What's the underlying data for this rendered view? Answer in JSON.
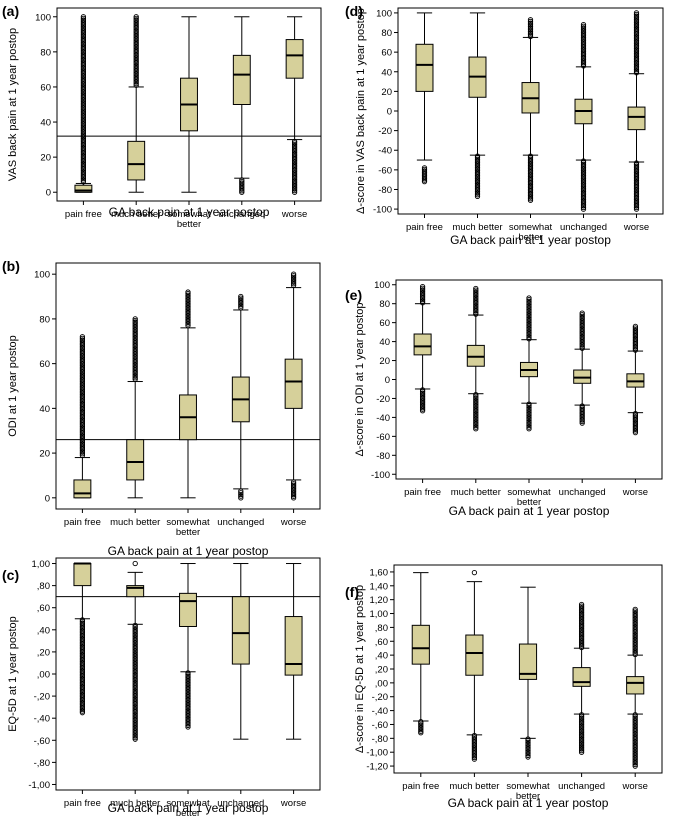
{
  "figure": {
    "x_title": "GA back pain at 1 year postop",
    "categories": [
      "pain free",
      "much better",
      "somewhat\nbetter",
      "unchanged",
      "worse"
    ]
  },
  "colors": {
    "box_fill": "#d6d09a",
    "stroke": "#000000",
    "frame": "#000000"
  },
  "chart_data": [
    {
      "type": "box",
      "panel": "(a)",
      "ylabel": "VAS back pain at 1 year postop",
      "xlabel": "GA back pain at 1 year postop",
      "ylim": [
        -5,
        105
      ],
      "yticks": [
        0,
        20,
        40,
        60,
        80,
        100
      ],
      "reference_line": 32,
      "categories": [
        "pain free",
        "much better",
        "somewhat better",
        "unchanged",
        "worse"
      ],
      "boxes": [
        {
          "lo": 0,
          "q1": 0,
          "med": 1,
          "q3": 4,
          "hi": 5,
          "out_hi": [
            6,
            100
          ],
          "out_lo": null
        },
        {
          "lo": 0,
          "q1": 7,
          "med": 16,
          "q3": 29,
          "hi": 60,
          "out_hi": [
            61,
            100
          ],
          "out_lo": null
        },
        {
          "lo": 0,
          "q1": 35,
          "med": 50,
          "q3": 65,
          "hi": 100,
          "out_hi": null,
          "out_lo": null
        },
        {
          "lo": 8,
          "q1": 50,
          "med": 67,
          "q3": 78,
          "hi": 100,
          "out_hi": null,
          "out_lo": [
            0,
            7
          ]
        },
        {
          "lo": 30,
          "q1": 65,
          "med": 78,
          "q3": 87,
          "hi": 100,
          "out_hi": null,
          "out_lo": [
            0,
            29
          ]
        }
      ]
    },
    {
      "type": "box",
      "panel": "(d)",
      "ylabel": "Δ-score in VAS back pain at 1 year postop",
      "xlabel": "GA back pain at 1 year postop",
      "ylim": [
        -105,
        105
      ],
      "yticks": [
        100,
        80,
        60,
        40,
        20,
        0,
        -20,
        -40,
        -60,
        -80,
        -100
      ],
      "reference_line": null,
      "categories": [
        "pain free",
        "much better",
        "somewhat better",
        "unchanged",
        "worse"
      ],
      "boxes": [
        {
          "lo": -50,
          "q1": 20,
          "med": 47,
          "q3": 68,
          "hi": 100,
          "out_hi": null,
          "out_lo": [
            -72,
            -58
          ]
        },
        {
          "lo": -45,
          "q1": 14,
          "med": 35,
          "q3": 55,
          "hi": 100,
          "out_hi": null,
          "out_lo": [
            -87,
            -46
          ]
        },
        {
          "lo": -45,
          "q1": -2,
          "med": 13,
          "q3": 29,
          "hi": 75,
          "out_hi": [
            76,
            93
          ],
          "out_lo": [
            -91,
            -46
          ]
        },
        {
          "lo": -50,
          "q1": -13,
          "med": 0,
          "q3": 12,
          "hi": 45,
          "out_hi": [
            46,
            88
          ],
          "out_lo": [
            -100,
            -51
          ]
        },
        {
          "lo": -52,
          "q1": -19,
          "med": -6,
          "q3": 4,
          "hi": 38,
          "out_hi": [
            39,
            100
          ],
          "out_lo": [
            -100,
            -53
          ]
        }
      ]
    },
    {
      "type": "box",
      "panel": "(b)",
      "ylabel": "ODI at 1 year postop",
      "xlabel": "GA back pain at 1 year postop",
      "ylim": [
        -5,
        105
      ],
      "yticks": [
        0,
        20,
        40,
        60,
        80,
        100
      ],
      "reference_line": 26,
      "categories": [
        "pain free",
        "much better",
        "somewhat better",
        "unchanged",
        "worse"
      ],
      "boxes": [
        {
          "lo": 0,
          "q1": 0,
          "med": 2,
          "q3": 8,
          "hi": 18,
          "out_hi": [
            19,
            72
          ],
          "out_lo": null
        },
        {
          "lo": 0,
          "q1": 8,
          "med": 16,
          "q3": 26,
          "hi": 52,
          "out_hi": [
            53,
            80
          ],
          "out_lo": null
        },
        {
          "lo": 0,
          "q1": 26,
          "med": 36,
          "q3": 46,
          "hi": 76,
          "out_hi": [
            77,
            92
          ],
          "out_lo": null
        },
        {
          "lo": 4,
          "q1": 34,
          "med": 44,
          "q3": 54,
          "hi": 84,
          "out_hi": [
            85,
            90
          ],
          "out_lo": [
            0,
            3
          ]
        },
        {
          "lo": 8,
          "q1": 40,
          "med": 52,
          "q3": 62,
          "hi": 94,
          "out_hi": [
            95,
            100
          ],
          "out_lo": [
            0,
            7
          ]
        }
      ]
    },
    {
      "type": "box",
      "panel": "(e)",
      "ylabel": "Δ-score in ODI at 1 year postop",
      "xlabel": "GA back pain at 1 year postop",
      "ylim": [
        -105,
        105
      ],
      "yticks": [
        100,
        80,
        60,
        40,
        20,
        0,
        -20,
        -40,
        -60,
        -80,
        -100
      ],
      "reference_line": null,
      "categories": [
        "pain free",
        "much better",
        "somewhat better",
        "unchanged",
        "worse"
      ],
      "boxes": [
        {
          "lo": -10,
          "q1": 26,
          "med": 35,
          "q3": 48,
          "hi": 80,
          "out_hi": [
            81,
            98
          ],
          "out_lo": [
            -33,
            -11
          ]
        },
        {
          "lo": -15,
          "q1": 14,
          "med": 24,
          "q3": 36,
          "hi": 68,
          "out_hi": [
            69,
            96
          ],
          "out_lo": [
            -52,
            -16
          ]
        },
        {
          "lo": -25,
          "q1": 3,
          "med": 10,
          "q3": 18,
          "hi": 42,
          "out_hi": [
            43,
            86
          ],
          "out_lo": [
            -52,
            -26
          ]
        },
        {
          "lo": -27,
          "q1": -4,
          "med": 2,
          "q3": 10,
          "hi": 32,
          "out_hi": [
            33,
            70
          ],
          "out_lo": [
            -46,
            -28
          ]
        },
        {
          "lo": -35,
          "q1": -8,
          "med": -2,
          "q3": 6,
          "hi": 30,
          "out_hi": [
            31,
            56
          ],
          "out_lo": [
            -56,
            -36
          ]
        }
      ]
    },
    {
      "type": "box",
      "panel": "(c)",
      "ylabel": "EQ-5D at 1 year postop",
      "xlabel": "GA back pain at 1 year postop",
      "ylim": [
        -1.05,
        1.05
      ],
      "yticks": [
        "1,00",
        ",80",
        ",60",
        ",40",
        ",20",
        ",00",
        "-,20",
        "-,40",
        "-,60",
        "-,80",
        "-1,00"
      ],
      "reference_line": 0.7,
      "categories": [
        "pain free",
        "much better",
        "somewhat better",
        "unchanged",
        "worse"
      ],
      "boxes": [
        {
          "lo": 0.5,
          "q1": 0.8,
          "med": 1.0,
          "q3": 1.0,
          "hi": 1.0,
          "out_hi": null,
          "out_lo": [
            -0.35,
            0.49
          ]
        },
        {
          "lo": 0.45,
          "q1": 0.7,
          "med": 0.78,
          "q3": 0.8,
          "hi": 0.92,
          "out_hi": [
            1.0,
            1.0
          ],
          "out_lo": [
            -0.59,
            0.44
          ]
        },
        {
          "lo": 0.02,
          "q1": 0.43,
          "med": 0.66,
          "q3": 0.73,
          "hi": 1.0,
          "out_hi": null,
          "out_lo": [
            -0.48,
            0.01
          ]
        },
        {
          "lo": -0.59,
          "q1": 0.09,
          "med": 0.37,
          "q3": 0.7,
          "hi": 1.0,
          "out_hi": null,
          "out_lo": null
        },
        {
          "lo": -0.59,
          "q1": -0.01,
          "med": 0.09,
          "q3": 0.52,
          "hi": 1.0,
          "out_hi": null,
          "out_lo": null
        }
      ]
    },
    {
      "type": "box",
      "panel": "(f)",
      "ylabel": "Δ-score in EQ-5D at 1 year postop",
      "xlabel": "GA back pain at 1 year postop",
      "ylim": [
        -1.3,
        1.7
      ],
      "yticks": [
        "1,60",
        "1,40",
        "1,20",
        "1,00",
        ",80",
        ",60",
        ",40",
        ",20",
        ",00",
        "-,20",
        "-,40",
        "-,60",
        "-,80",
        "-1,00",
        "-1,20"
      ],
      "reference_line": null,
      "categories": [
        "pain free",
        "much better",
        "somewhat better",
        "unchanged",
        "worse"
      ],
      "boxes": [
        {
          "lo": -0.55,
          "q1": 0.27,
          "med": 0.5,
          "q3": 0.83,
          "hi": 1.59,
          "out_hi": null,
          "out_lo": [
            -0.72,
            -0.56
          ]
        },
        {
          "lo": -0.75,
          "q1": 0.11,
          "med": 0.43,
          "q3": 0.69,
          "hi": 1.46,
          "out_hi": [
            1.59,
            1.59
          ],
          "out_lo": [
            -1.1,
            -0.76
          ]
        },
        {
          "lo": -0.8,
          "q1": 0.05,
          "med": 0.13,
          "q3": 0.56,
          "hi": 1.38,
          "out_hi": null,
          "out_lo": [
            -1.07,
            -0.81
          ]
        },
        {
          "lo": -0.45,
          "q1": -0.05,
          "med": 0.01,
          "q3": 0.22,
          "hi": 0.5,
          "out_hi": [
            0.51,
            1.13
          ],
          "out_lo": [
            -1.0,
            -0.46
          ]
        },
        {
          "lo": -0.45,
          "q1": -0.16,
          "med": 0.0,
          "q3": 0.09,
          "hi": 0.4,
          "out_hi": [
            0.41,
            1.06
          ],
          "out_lo": [
            -1.2,
            -0.46
          ]
        }
      ]
    }
  ]
}
